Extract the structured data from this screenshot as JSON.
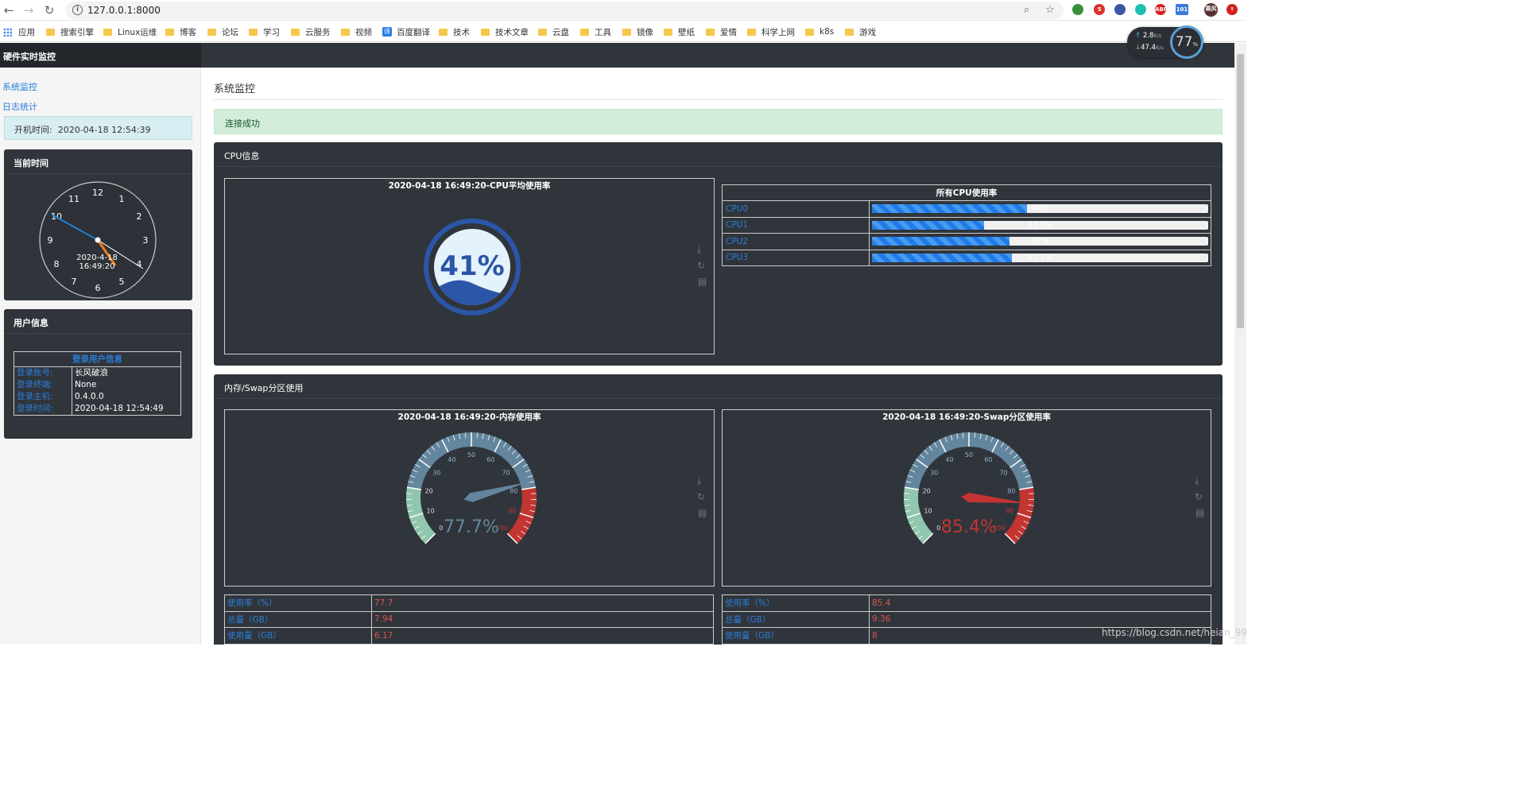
{
  "browser": {
    "url": "127.0.0.1:8000",
    "bookmarks": [
      "应用",
      "搜索引擎",
      "Linux运维",
      "博客",
      "论坛",
      "学习",
      "云服务",
      "视频",
      "百度翻译",
      "技术",
      "技术文章",
      "云盘",
      "工具",
      "镜像",
      "壁纸",
      "爱情",
      "科学上网",
      "k8s",
      "游戏"
    ],
    "translate_badge": "译",
    "extensions": {
      "mail_count": "5",
      "abp": "ABP",
      "cal_count": "101",
      "avatar": "乘风"
    }
  },
  "speed_widget": {
    "up": "2.8",
    "down": "47.4",
    "unit": "K/s",
    "percent": "77",
    "percent_sign": "%"
  },
  "app": {
    "title": "硬件实时监控",
    "nav": [
      "系统监控",
      "日志统计"
    ],
    "boot_time_label": "开机时间:",
    "boot_time": "2020-04-18 12:54:39"
  },
  "clock": {
    "title": "当前时间",
    "numbers": [
      "12",
      "1",
      "2",
      "3",
      "4",
      "5",
      "6",
      "7",
      "8",
      "9",
      "10",
      "11"
    ],
    "date": "2020-4-18",
    "time": "16:49:20"
  },
  "user_info": {
    "title": "用户信息",
    "table_title": "登录用户信息",
    "rows": [
      {
        "label": "登录账号:",
        "value": "长风破浪"
      },
      {
        "label": "登录终端:",
        "value": "None"
      },
      {
        "label": "登录主机:",
        "value": "0.4.0.0"
      },
      {
        "label": "登录时间:",
        "value": "2020-04-18 12:54:49"
      }
    ]
  },
  "main": {
    "title": "系统监控",
    "alert": "连接成功"
  },
  "cpu": {
    "section_title": "CPU信息",
    "chart_title": "2020-04-18 16:49:20-CPU平均使用率",
    "avg_label": "41%",
    "avg_value": 41,
    "table_title": "所有CPU使用率",
    "cores": [
      {
        "name": "CPU0",
        "label": "46%",
        "value": 46
      },
      {
        "name": "CPU1",
        "label": "33.3%",
        "value": 33.3
      },
      {
        "name": "CPU2",
        "label": "41%",
        "value": 41
      },
      {
        "name": "CPU3",
        "label": "41.7%",
        "value": 41.7
      }
    ]
  },
  "memory": {
    "section_title": "内存/Swap分区使用",
    "mem_chart": {
      "title": "2020-04-18 16:49:20-内存使用率",
      "value": 77.7,
      "label": "77.7%"
    },
    "swap_chart": {
      "title": "2020-04-18 16:49:20-Swap分区使用率",
      "value": 85.4,
      "label": "85.4%"
    },
    "gauge_ticks": [
      "0",
      "10",
      "20",
      "30",
      "40",
      "50",
      "60",
      "70",
      "80",
      "90",
      "100"
    ],
    "mem_stats": [
      {
        "label": "使用率（%）",
        "value": "77.7"
      },
      {
        "label": "总量（GB）",
        "value": "7.94"
      },
      {
        "label": "使用量（GB）",
        "value": "6.17"
      }
    ],
    "swap_stats": [
      {
        "label": "使用率（%）",
        "value": "85.4"
      },
      {
        "label": "总量（GB）",
        "value": "9.36"
      },
      {
        "label": "使用量（GB）",
        "value": "8"
      }
    ]
  },
  "watermark": "https://blog.csdn.net/heian_99",
  "chart_data": [
    {
      "type": "gauge",
      "title": "2020-04-18 16:49:20-CPU平均使用率",
      "values": [
        41
      ],
      "unit": "%"
    },
    {
      "type": "bar",
      "title": "所有CPU使用率",
      "categories": [
        "CPU0",
        "CPU1",
        "CPU2",
        "CPU3"
      ],
      "values": [
        46,
        33.3,
        41,
        41.7
      ],
      "ylim": [
        0,
        100
      ]
    },
    {
      "type": "gauge",
      "title": "2020-04-18 16:49:20-内存使用率",
      "values": [
        77.7
      ],
      "ylim": [
        0,
        100
      ]
    },
    {
      "type": "gauge",
      "title": "2020-04-18 16:49:20-Swap分区使用率",
      "values": [
        85.4
      ],
      "ylim": [
        0,
        100
      ]
    }
  ],
  "colors": {
    "accent": "#2a7ed8",
    "panel": "#30353c",
    "danger": "#c23531",
    "gauge_safe": "#91c7ae",
    "gauge_mid": "#63869e"
  }
}
